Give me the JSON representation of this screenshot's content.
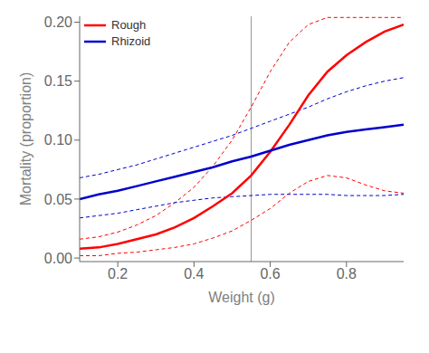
{
  "chart_data": {
    "type": "line",
    "title": "",
    "xlabel": "Weight (g)",
    "ylabel": "Mortality (proportion)",
    "xlim": [
      0.1,
      0.95
    ],
    "ylim": [
      -0.003,
      0.205
    ],
    "xticks": [
      0.2,
      0.4,
      0.6,
      0.8
    ],
    "yticks": [
      {
        "value": 0.0,
        "label": "0.00"
      },
      {
        "value": 0.05,
        "label": "0.05"
      },
      {
        "value": 0.1,
        "label": "0.10"
      },
      {
        "value": 0.15,
        "label": "0.15"
      },
      {
        "value": 0.2,
        "label": "0.20"
      }
    ],
    "grid": false,
    "legend": "upper left",
    "x": [
      0.1,
      0.15,
      0.2,
      0.25,
      0.3,
      0.35,
      0.4,
      0.45,
      0.5,
      0.55,
      0.6,
      0.65,
      0.7,
      0.75,
      0.8,
      0.85,
      0.9,
      0.95
    ],
    "series": [
      {
        "color": "#FF0000",
        "line_style": "dashed",
        "values": [
          0.016,
          0.018,
          0.022,
          0.028,
          0.036,
          0.047,
          0.06,
          0.078,
          0.1,
          0.128,
          0.158,
          0.183,
          0.198,
          0.204,
          0.204,
          0.204,
          0.204,
          0.204
        ]
      },
      {
        "color": "#FF0000",
        "line_style": "dashed",
        "values": [
          0.002,
          0.002,
          0.004,
          0.005,
          0.007,
          0.009,
          0.012,
          0.017,
          0.023,
          0.032,
          0.042,
          0.055,
          0.065,
          0.07,
          0.068,
          0.062,
          0.057,
          0.055
        ]
      },
      {
        "color": "#0000CC",
        "line_style": "dashed",
        "values": [
          0.068,
          0.071,
          0.075,
          0.079,
          0.084,
          0.089,
          0.094,
          0.099,
          0.104,
          0.11,
          0.116,
          0.122,
          0.128,
          0.135,
          0.141,
          0.146,
          0.15,
          0.153
        ]
      },
      {
        "color": "#0000CC",
        "line_style": "dashed",
        "values": [
          0.034,
          0.036,
          0.038,
          0.041,
          0.044,
          0.047,
          0.049,
          0.051,
          0.052,
          0.053,
          0.054,
          0.054,
          0.054,
          0.054,
          0.053,
          0.053,
          0.053,
          0.054
        ]
      },
      {
        "name": "Rough",
        "color": "#FF0000",
        "line_style": "solid",
        "values": [
          0.008,
          0.009,
          0.012,
          0.016,
          0.02,
          0.026,
          0.034,
          0.044,
          0.055,
          0.07,
          0.09,
          0.113,
          0.138,
          0.158,
          0.172,
          0.183,
          0.192,
          0.198
        ]
      },
      {
        "name": "Rhizoid",
        "color": "#0000CC",
        "line_style": "solid",
        "values": [
          0.05,
          0.054,
          0.057,
          0.061,
          0.065,
          0.069,
          0.073,
          0.077,
          0.082,
          0.086,
          0.091,
          0.096,
          0.1,
          0.104,
          0.107,
          0.109,
          0.111,
          0.113
        ]
      }
    ],
    "vlines": [
      {
        "x": 0.55,
        "color": "#999999"
      }
    ]
  }
}
